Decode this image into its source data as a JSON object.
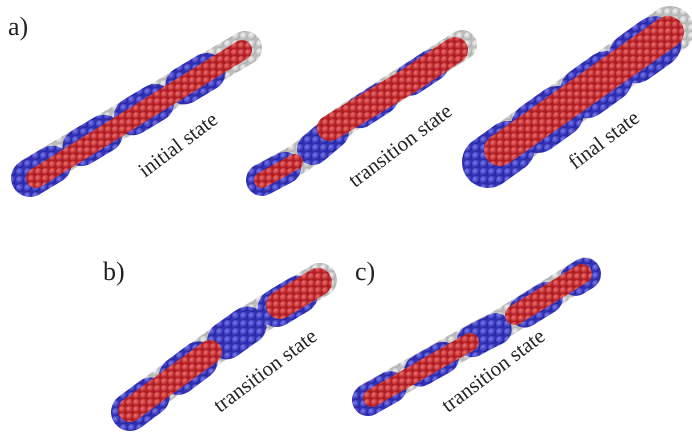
{
  "panels": [
    {
      "label": "a)",
      "structures": [
        {
          "caption": "initial state"
        },
        {
          "caption": "transition state"
        },
        {
          "caption": "final state"
        }
      ]
    },
    {
      "label": "b)",
      "structures": [
        {
          "caption": "transition state"
        }
      ]
    },
    {
      "label": "c)",
      "structures": [
        {
          "caption": "transition state"
        }
      ]
    }
  ]
}
